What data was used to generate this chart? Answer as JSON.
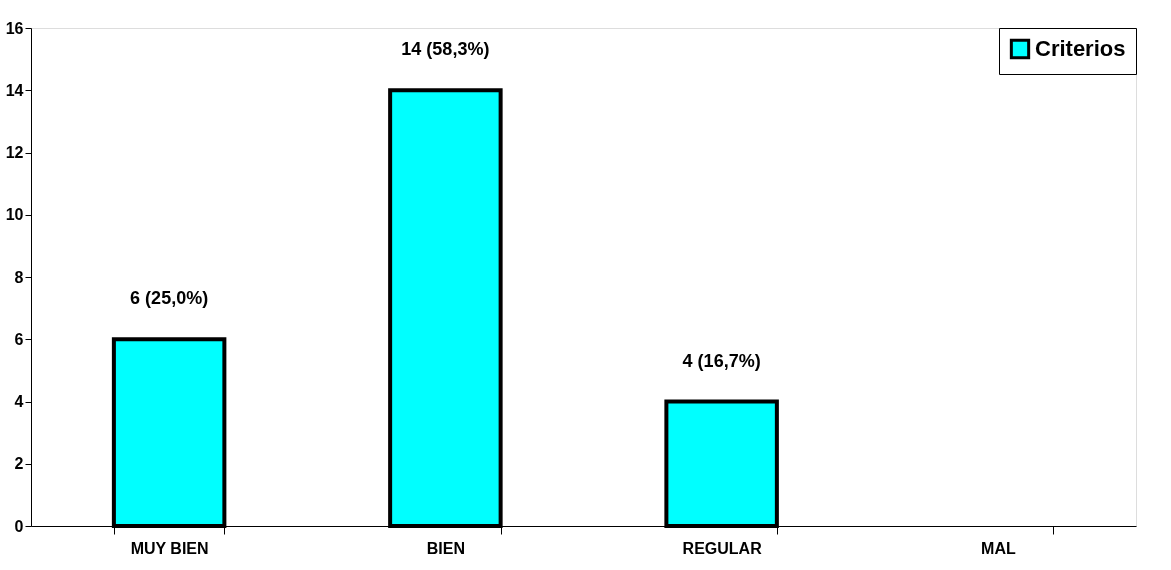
{
  "chart_data": {
    "type": "bar",
    "categories": [
      "MUY BIEN",
      "BIEN",
      "REGULAR",
      "MAL"
    ],
    "series": [
      {
        "name": "Criterios",
        "color": "#00ffff",
        "values": [
          6,
          14,
          4,
          0
        ],
        "value_labels": [
          "6 (25,0%)",
          "14 (58,3%)",
          "4 (16,7%)",
          null
        ]
      }
    ],
    "ylim": [
      0,
      16
    ],
    "yticks": [
      0,
      2,
      4,
      6,
      8,
      10,
      12,
      14,
      16
    ],
    "grid": false,
    "legend": "top right"
  }
}
